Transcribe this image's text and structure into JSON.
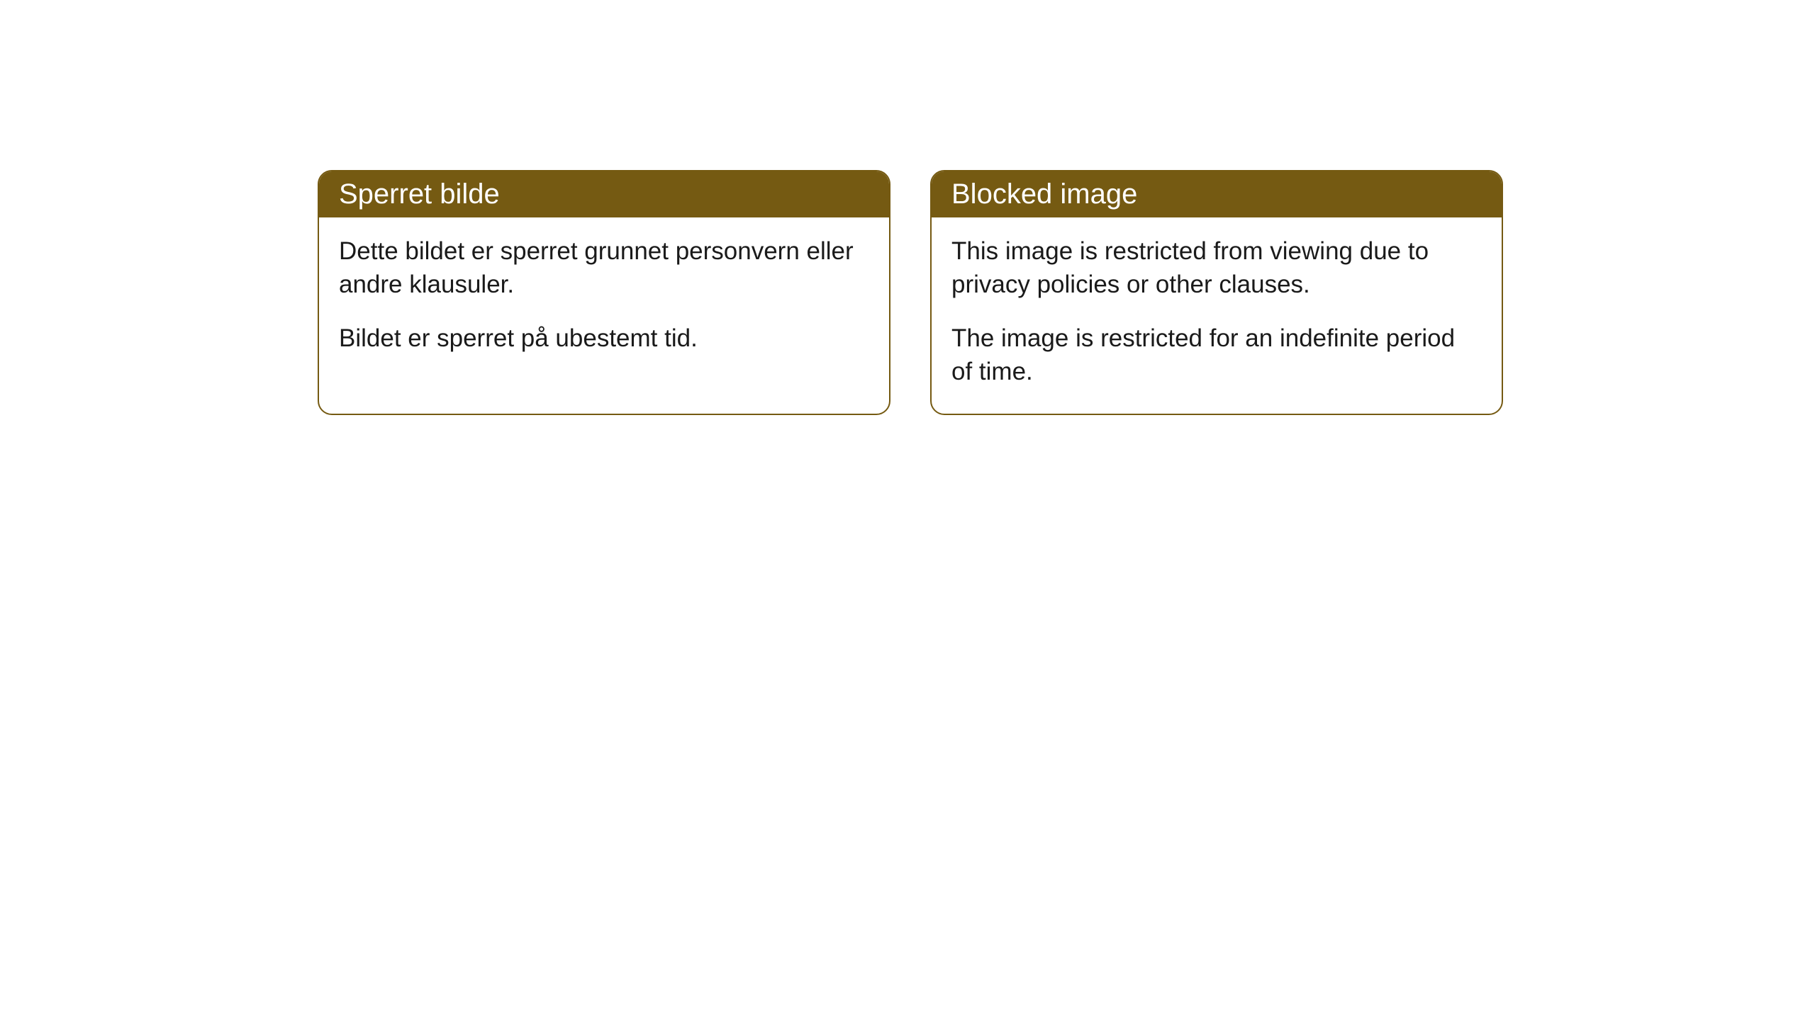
{
  "cards": [
    {
      "title": "Sperret bilde",
      "paragraph1": "Dette bildet er sperret grunnet personvern eller andre klausuler.",
      "paragraph2": "Bildet er sperret på ubestemt tid."
    },
    {
      "title": "Blocked image",
      "paragraph1": "This image is restricted from viewing due to privacy policies or other clauses.",
      "paragraph2": "The image is restricted for an indefinite period of time."
    }
  ],
  "styling": {
    "header_bg_color": "#755a12",
    "header_text_color": "#ffffff",
    "border_color": "#755a12",
    "body_bg_color": "#ffffff",
    "body_text_color": "#1a1a1a",
    "border_radius": 20,
    "title_fontsize": 40,
    "body_fontsize": 35
  }
}
